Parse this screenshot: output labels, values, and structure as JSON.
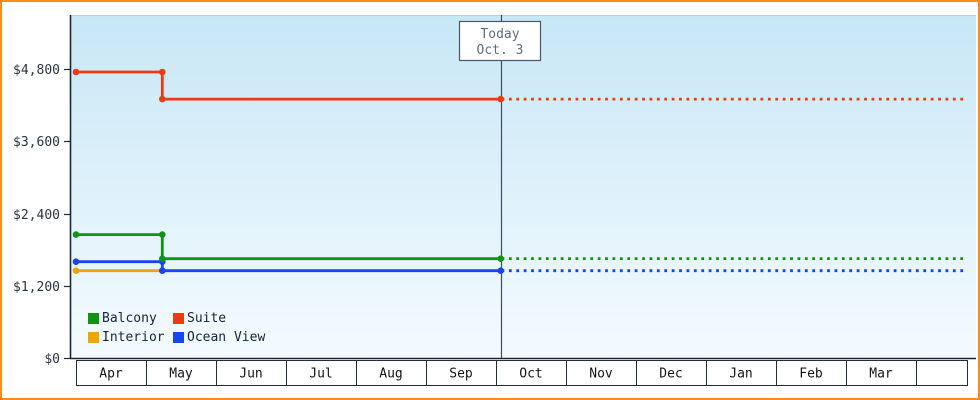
{
  "frame": {
    "border_color": "#ff8c1a",
    "background": "#ffffff"
  },
  "chart_data": {
    "type": "line",
    "title": "",
    "description": "Cruise cabin price history by category with forecast after today",
    "plot_background": {
      "top": "#c7e7f5",
      "bottom": "#f4fbff"
    },
    "axis_color": "#1c2738",
    "y_axis": {
      "ticks": [
        {
          "label": "$0",
          "value": 0
        },
        {
          "label": "$1,200",
          "value": 1200
        },
        {
          "label": "$2,400",
          "value": 2400
        },
        {
          "label": "$3,600",
          "value": 3600
        },
        {
          "label": "$4,800",
          "value": 4800
        }
      ],
      "max_value": 5700
    },
    "x_axis": {
      "months": [
        "Apr",
        "May",
        "Jun",
        "Jul",
        "Aug",
        "Sep",
        "Oct",
        "Nov",
        "Dec",
        "Jan",
        "Feb",
        "Mar"
      ]
    },
    "today_marker": {
      "line1": "Today",
      "line2": "Oct. 3",
      "month": "Oct",
      "day": 3
    },
    "series": [
      {
        "name": "Balcony",
        "color": "#129412",
        "points": [
          {
            "month": "Apr",
            "day": 1,
            "value": 2050
          },
          {
            "month": "May",
            "day": 8,
            "value": 2050
          },
          {
            "month": "May",
            "day": 8,
            "value": 1650
          },
          {
            "month": "Oct",
            "day": 3,
            "value": 1650
          }
        ],
        "forecast_value": 1650
      },
      {
        "name": "Suite",
        "color": "#ee3a10",
        "points": [
          {
            "month": "Apr",
            "day": 1,
            "value": 4750
          },
          {
            "month": "May",
            "day": 8,
            "value": 4750
          },
          {
            "month": "May",
            "day": 8,
            "value": 4300
          },
          {
            "month": "Oct",
            "day": 3,
            "value": 4300
          }
        ],
        "forecast_value": 4300
      },
      {
        "name": "Interior",
        "color": "#eea40c",
        "points": [
          {
            "month": "Apr",
            "day": 1,
            "value": 1450
          },
          {
            "month": "May",
            "day": 8,
            "value": 1450
          }
        ],
        "forecast_value": null
      },
      {
        "name": "Ocean View",
        "color": "#1745ee",
        "points": [
          {
            "month": "Apr",
            "day": 1,
            "value": 1600
          },
          {
            "month": "May",
            "day": 8,
            "value": 1600
          },
          {
            "month": "May",
            "day": 8,
            "value": 1450
          },
          {
            "month": "Oct",
            "day": 3,
            "value": 1450
          }
        ],
        "forecast_value": 1450
      }
    ],
    "legend": {
      "rows": [
        [
          "Balcony",
          "Suite"
        ],
        [
          "Interior",
          "Ocean View"
        ]
      ]
    }
  }
}
